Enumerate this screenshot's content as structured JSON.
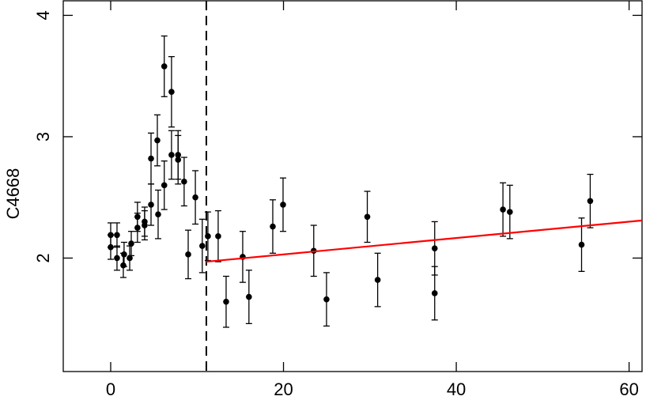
{
  "chart_data": {
    "type": "scatter",
    "y_label": "C4668",
    "xlim": [
      -5.49,
      61.5
    ],
    "ylim": [
      1.065,
      4.12
    ],
    "xticks": [
      0,
      20,
      40,
      60
    ],
    "yticks": [
      2,
      3,
      4
    ],
    "vline": 11.07,
    "series": [
      {
        "color": "#000000",
        "x": [
          0,
          0,
          0.73,
          0.73,
          1.46,
          1.55,
          2.2,
          2.38,
          3.1,
          3.1,
          3.93,
          3.93,
          4.67,
          4.67,
          5.4,
          5.49,
          6.2,
          6.2,
          7.04,
          7.04,
          7.8,
          7.8,
          8.5,
          8.97,
          9.8,
          10.6,
          11.25,
          12.44,
          13.36,
          15.28,
          16.0,
          18.76,
          19.95,
          23.5,
          24.98,
          29.7,
          30.9,
          37.5,
          37.5,
          45.4,
          46.2,
          54.5,
          55.5
        ],
        "values": [
          2.19,
          2.09,
          2.19,
          2.0,
          1.94,
          2.03,
          2.0,
          2.12,
          2.25,
          2.34,
          2.27,
          2.3,
          2.44,
          2.82,
          2.97,
          2.36,
          3.58,
          2.6,
          3.37,
          2.85,
          2.85,
          2.81,
          2.63,
          2.03,
          2.5,
          2.1,
          2.18,
          2.18,
          1.64,
          2.01,
          1.68,
          2.26,
          2.44,
          2.06,
          1.66,
          2.34,
          1.82,
          2.08,
          1.71,
          2.4,
          2.38,
          2.11,
          2.47
        ],
        "errors": [
          0.1,
          0.1,
          0.1,
          0.1,
          0.1,
          0.1,
          0.1,
          0.1,
          0.12,
          0.12,
          0.12,
          0.12,
          0.17,
          0.21,
          0.21,
          0.2,
          0.25,
          0.2,
          0.29,
          0.2,
          0.2,
          0.2,
          0.2,
          0.2,
          0.22,
          0.22,
          0.2,
          0.21,
          0.21,
          0.21,
          0.22,
          0.22,
          0.22,
          0.21,
          0.22,
          0.21,
          0.22,
          0.22,
          0.22,
          0.22,
          0.22,
          0.22,
          0.22
        ]
      }
    ],
    "fit": {
      "color": "#ff0000",
      "x": [
        11.07,
        61.5
      ],
      "values": [
        1.97,
        2.31
      ]
    }
  }
}
